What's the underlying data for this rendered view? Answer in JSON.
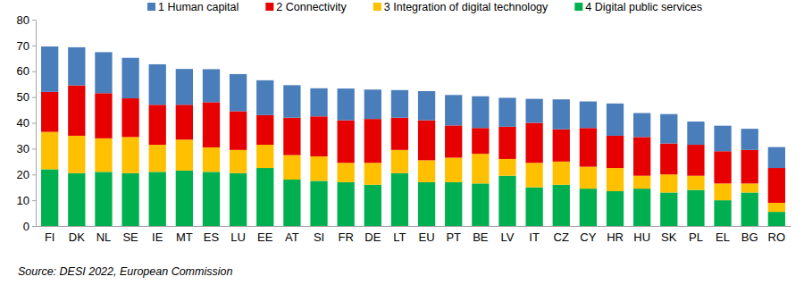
{
  "chart_data": {
    "type": "bar",
    "stacked": true,
    "grid": false,
    "legend": "top",
    "annotations": [
      "Source: DESI 2022, European Commission"
    ],
    "categories": [
      "FI",
      "DK",
      "NL",
      "SE",
      "IE",
      "MT",
      "ES",
      "LU",
      "EE",
      "AT",
      "SI",
      "FR",
      "DE",
      "LT",
      "EU",
      "PT",
      "BE",
      "LV",
      "IT",
      "CZ",
      "CY",
      "HR",
      "HU",
      "SK",
      "PL",
      "EL",
      "BG",
      "RO"
    ],
    "ylim": [
      0,
      80
    ],
    "yticks": [
      0,
      10,
      20,
      30,
      40,
      50,
      60,
      70,
      80
    ],
    "series": [
      {
        "name": "1 Human capital",
        "color": "#4a7ebb",
        "values": [
          17.6,
          14.8,
          15.9,
          15.7,
          15.7,
          13.9,
          12.8,
          14.4,
          13.5,
          12.6,
          10.9,
          12.3,
          11.4,
          10.7,
          11.3,
          11.8,
          12.3,
          11.2,
          9.3,
          11.6,
          10.3,
          12.5,
          9.3,
          11.4,
          9.0,
          9.9,
          8.2,
          8.1
        ]
      },
      {
        "name": "2 Connectivity",
        "color": "#e60000",
        "values": [
          15.5,
          19.5,
          17.5,
          15.0,
          15.5,
          13.5,
          17.5,
          15.0,
          11.5,
          14.5,
          15.5,
          16.5,
          17.0,
          12.5,
          15.5,
          12.5,
          10.0,
          12.5,
          15.5,
          12.5,
          15.0,
          12.5,
          15.0,
          12.0,
          12.0,
          12.5,
          13.0,
          13.5
        ]
      },
      {
        "name": "3 Integration of digital technology",
        "color": "#ffc000",
        "values": [
          14.5,
          14.5,
          13.0,
          14.0,
          10.5,
          12.0,
          9.5,
          9.0,
          9.0,
          9.5,
          9.5,
          7.5,
          8.5,
          9.0,
          8.5,
          9.5,
          11.5,
          6.5,
          9.5,
          9.0,
          8.5,
          9.0,
          5.0,
          7.0,
          5.5,
          6.5,
          3.5,
          3.5
        ]
      },
      {
        "name": "4 Digital public services",
        "color": "#00b050",
        "values": [
          22.0,
          20.5,
          21.0,
          20.5,
          21.0,
          21.5,
          21.0,
          20.5,
          22.5,
          18.0,
          17.5,
          17.0,
          16.0,
          20.5,
          17.0,
          17.0,
          16.5,
          19.5,
          15.0,
          16.0,
          14.5,
          13.5,
          14.5,
          13.0,
          14.0,
          10.0,
          13.0,
          5.5
        ]
      }
    ]
  }
}
